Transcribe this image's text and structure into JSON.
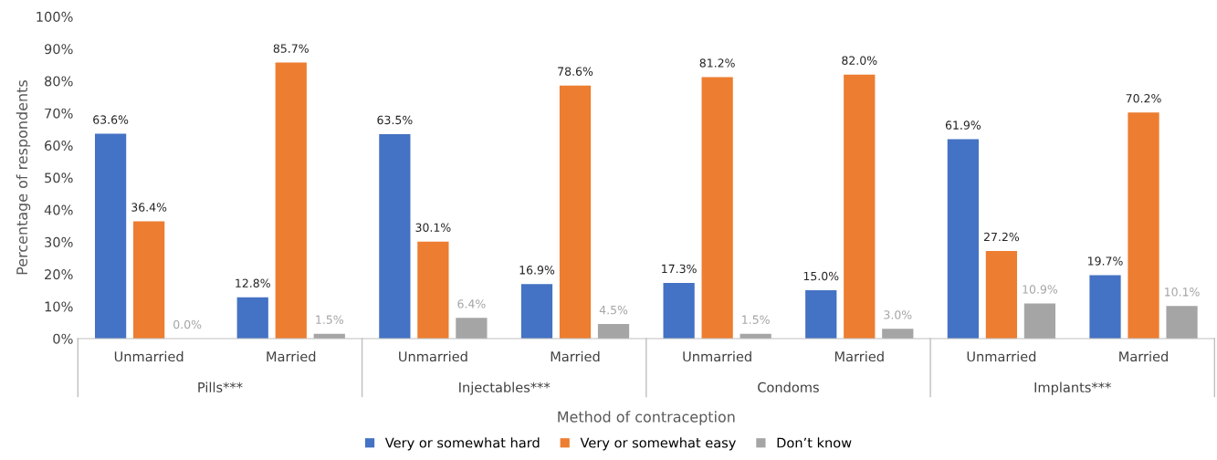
{
  "chart_data": {
    "type": "bar",
    "xlabel": "Method of contraception",
    "ylabel": "Percentage of respondents",
    "categories": [
      "Unmarried",
      "Married",
      "Unmarried",
      "Married",
      "Unmarried",
      "Married",
      "Unmarried",
      "Married"
    ],
    "annotations": [
      "Pills***",
      "Injectables***",
      "Condoms",
      "Implants***"
    ],
    "series": [
      {
        "name": "Very or somewhat hard",
        "color": "#4472c4",
        "values": [
          63.6,
          12.8,
          63.5,
          16.9,
          17.3,
          15.0,
          61.9,
          19.7
        ]
      },
      {
        "name": "Very or somewhat easy",
        "color": "#ed7d31",
        "values": [
          36.4,
          85.7,
          30.1,
          78.6,
          81.2,
          82.0,
          27.2,
          70.2
        ]
      },
      {
        "name": "Don’t know",
        "color": "#a5a5a5",
        "values": [
          0.0,
          1.5,
          6.4,
          4.5,
          1.5,
          3.0,
          10.9,
          10.1
        ]
      }
    ],
    "value_labels": [
      [
        "63.6%",
        "12.8%",
        "63.5%",
        "16.9%",
        "17.3%",
        "15.0%",
        "61.9%",
        "19.7%"
      ],
      [
        "36.4%",
        "85.7%",
        "30.1%",
        "78.6%",
        "81.2%",
        "82.0%",
        "27.2%",
        "70.2%"
      ],
      [
        "0.0%",
        "1.5%",
        "6.4%",
        "4.5%",
        "1.5%",
        "3.0%",
        "10.9%",
        "10.1%"
      ]
    ],
    "ylim": [
      0,
      100
    ],
    "yticks": [
      {
        "value": 0,
        "label": "0%"
      },
      {
        "value": 10,
        "label": "10%"
      },
      {
        "value": 20,
        "label": "20%"
      },
      {
        "value": 30,
        "label": "30%"
      },
      {
        "value": 40,
        "label": "40%"
      },
      {
        "value": 50,
        "label": "50%"
      },
      {
        "value": 60,
        "label": "60%"
      },
      {
        "value": 70,
        "label": "70%"
      },
      {
        "value": 80,
        "label": "80%"
      },
      {
        "value": 90,
        "label": "90%"
      },
      {
        "value": 100,
        "label": "100%"
      }
    ],
    "grid": false,
    "legend": "bottom"
  }
}
